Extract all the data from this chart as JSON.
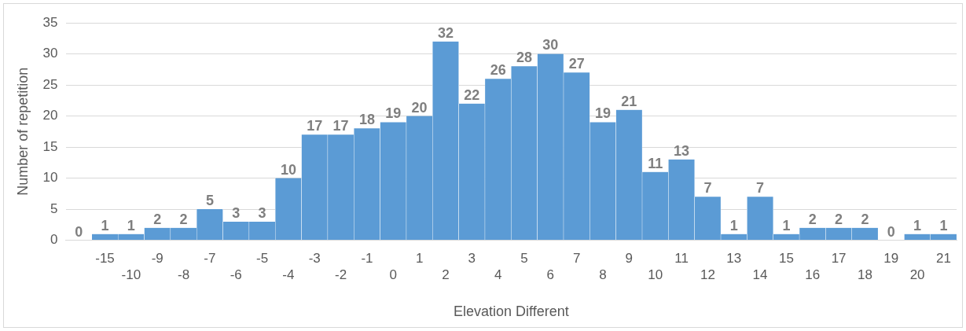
{
  "chart_data": {
    "type": "bar",
    "xlabel": "Elevation Different",
    "ylabel": "Number of repetition",
    "categories": [
      null,
      "-15",
      "-10",
      "-9",
      "-8",
      "-7",
      "-6",
      "-5",
      "-4",
      "-3",
      "-2",
      "-1",
      "0",
      "1",
      "2",
      "3",
      "4",
      "5",
      "6",
      "7",
      "8",
      "9",
      "10",
      "11",
      "12",
      "13",
      "14",
      "15",
      "16",
      "17",
      "18",
      "19",
      "20",
      "21"
    ],
    "values": [
      0,
      1,
      1,
      2,
      2,
      5,
      3,
      3,
      10,
      17,
      17,
      18,
      19,
      20,
      32,
      22,
      26,
      28,
      30,
      27,
      19,
      21,
      11,
      13,
      7,
      1,
      7,
      1,
      2,
      2,
      2,
      0,
      1,
      1
    ],
    "color": "#5b9bd5",
    "ylim": [
      0,
      35
    ],
    "yticks": [
      0,
      5,
      10,
      15,
      20,
      25,
      30,
      35
    ],
    "grid": "y",
    "data_labels": true
  }
}
